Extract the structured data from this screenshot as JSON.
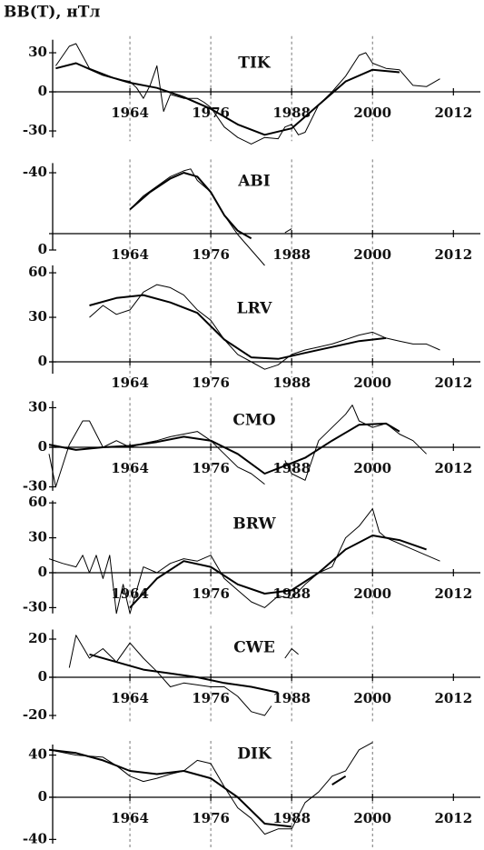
{
  "axis_label": "BB(T), нТл",
  "chart_data": [
    {
      "type": "line",
      "title": "TIK",
      "xlim": [
        1952,
        2016
      ],
      "xticks": [
        1964,
        1976,
        1988,
        2000,
        2012
      ],
      "ylim": [
        -35,
        40
      ],
      "yticks": [
        30,
        0,
        -30
      ],
      "series": [
        {
          "color": "#000000",
          "width": 1,
          "x": [
            1953,
            1955,
            1956,
            1958,
            1960,
            1962,
            1964,
            1965,
            1966,
            1967,
            1968,
            1969,
            1970,
            1972,
            1974,
            1975,
            1976,
            1978,
            1980,
            1982,
            1984,
            1986,
            1987,
            1988,
            1989,
            1990,
            1992,
            1994,
            1996,
            1998,
            1999,
            2000,
            2002,
            2004,
            2006,
            2008,
            2010
          ],
          "values": [
            20,
            35,
            37,
            18,
            14,
            10,
            8,
            3,
            -5,
            5,
            20,
            -15,
            -2,
            -5,
            -5,
            -8,
            -12,
            -27,
            -35,
            -40,
            -35,
            -36,
            -27,
            -25,
            -33,
            -31,
            -10,
            0,
            12,
            28,
            30,
            22,
            18,
            17,
            5,
            4,
            10
          ]
        },
        {
          "color": "#000000",
          "width": 2,
          "x": [
            1953,
            1956,
            1960,
            1964,
            1968,
            1972,
            1976,
            1980,
            1984,
            1988,
            1992,
            1996,
            2000,
            2004
          ],
          "values": [
            18,
            22,
            13,
            7,
            3,
            -4,
            -13,
            -25,
            -33,
            -28,
            -10,
            8,
            17,
            15
          ]
        }
      ]
    },
    {
      "type": "line",
      "title": "ABI",
      "xlim": [
        1952,
        2016
      ],
      "xticks": [
        1964,
        1976,
        1988,
        2000,
        2012
      ],
      "ylim": [
        0,
        -45
      ],
      "yticks": [
        -40,
        0
      ],
      "series": [
        {
          "color": "#000000",
          "width": 1,
          "x": [
            1964,
            1966,
            1968,
            1970,
            1972,
            1973,
            1974,
            1976,
            1978,
            1980,
            1982,
            1984,
            1986,
            1987,
            1988
          ],
          "values": [
            -21,
            -28,
            -33,
            -38,
            -41,
            -42,
            -36,
            -30,
            -18,
            -8,
            0,
            8,
            null,
            -9,
            -11
          ]
        },
        {
          "color": "#000000",
          "width": 2,
          "x": [
            1964,
            1967,
            1970,
            1972,
            1974,
            1976,
            1978,
            1980,
            1982
          ],
          "values": [
            -21,
            -30,
            -37,
            -40,
            -38,
            -30,
            -18,
            -10,
            -6
          ]
        }
      ]
    },
    {
      "type": "line",
      "title": "LRV",
      "xlim": [
        1952,
        2016
      ],
      "xticks": [
        1964,
        1976,
        1988,
        2000,
        2012
      ],
      "ylim": [
        -8,
        65
      ],
      "yticks": [
        60,
        30,
        0
      ],
      "series": [
        {
          "color": "#000000",
          "width": 1,
          "x": [
            1958,
            1960,
            1962,
            1964,
            1966,
            1968,
            1970,
            1972,
            1974,
            1976,
            1978,
            1980,
            1982,
            1984,
            1986,
            1988,
            1990,
            1992,
            1994,
            1996,
            1998,
            2000,
            2002,
            2004,
            2006,
            2008,
            2010
          ],
          "values": [
            30,
            38,
            32,
            35,
            47,
            52,
            50,
            45,
            35,
            28,
            15,
            5,
            0,
            -5,
            -2,
            5,
            8,
            10,
            12,
            15,
            18,
            20,
            16,
            14,
            12,
            12,
            8
          ]
        },
        {
          "color": "#000000",
          "width": 2,
          "x": [
            1958,
            1962,
            1966,
            1970,
            1974,
            1978,
            1982,
            1986,
            1990,
            1994,
            1998,
            2002
          ],
          "values": [
            38,
            43,
            45,
            40,
            33,
            15,
            3,
            2,
            6,
            10,
            14,
            16
          ]
        }
      ]
    },
    {
      "type": "line",
      "title": "CMO",
      "xlim": [
        1952,
        2016
      ],
      "xticks": [
        1964,
        1976,
        1988,
        2000,
        2012
      ],
      "ylim": [
        -33,
        35
      ],
      "yticks": [
        30,
        0,
        -30
      ],
      "series": [
        {
          "color": "#000000",
          "width": 1,
          "x": [
            1952,
            1953,
            1955,
            1957,
            1958,
            1960,
            1962,
            1964,
            1966,
            1968,
            1970,
            1972,
            1974,
            1976,
            1978,
            1980,
            1982,
            1984,
            1986,
            1987,
            1988,
            1990,
            1992,
            1994,
            1996,
            1997,
            1998,
            2000,
            2002,
            2004,
            2006,
            2008
          ],
          "values": [
            -5,
            -30,
            2,
            20,
            20,
            0,
            5,
            0,
            3,
            5,
            8,
            10,
            12,
            5,
            -5,
            -15,
            -20,
            -28,
            null,
            -10,
            -20,
            -25,
            5,
            15,
            25,
            32,
            20,
            15,
            18,
            10,
            5,
            -5
          ]
        },
        {
          "color": "#000000",
          "width": 2,
          "x": [
            1952,
            1956,
            1960,
            1964,
            1968,
            1972,
            1976,
            1980,
            1984,
            1990,
            1994,
            1998,
            2002,
            2004
          ],
          "values": [
            2,
            -2,
            0,
            1,
            4,
            8,
            5,
            -5,
            -20,
            -8,
            5,
            17,
            18,
            12
          ]
        }
      ]
    },
    {
      "type": "line",
      "title": "BRW",
      "xlim": [
        1952,
        2016
      ],
      "xticks": [
        1964,
        1976,
        1988,
        2000,
        2012
      ],
      "ylim": [
        -35,
        62
      ],
      "yticks": [
        60,
        30,
        0,
        -30
      ],
      "series": [
        {
          "color": "#000000",
          "width": 1,
          "x": [
            1952,
            1954,
            1956,
            1957,
            1958,
            1959,
            1960,
            1961,
            1962,
            1963,
            1964,
            1966,
            1968,
            1970,
            1972,
            1974,
            1976,
            1978,
            1980,
            1982,
            1984,
            1986,
            1988,
            1990,
            1992,
            1994,
            1996,
            1998,
            2000,
            2001,
            2002,
            2004,
            2006,
            2008,
            2010
          ],
          "values": [
            12,
            8,
            5,
            15,
            0,
            15,
            -5,
            15,
            -35,
            -10,
            -35,
            5,
            0,
            8,
            12,
            10,
            15,
            -5,
            -15,
            -25,
            -30,
            -20,
            -22,
            -10,
            0,
            5,
            30,
            40,
            55,
            35,
            30,
            25,
            20,
            15,
            10
          ]
        },
        {
          "color": "#000000",
          "width": 2,
          "x": [
            1964,
            1968,
            1972,
            1976,
            1980,
            1984,
            1988,
            1992,
            1996,
            2000,
            2004,
            2008
          ],
          "values": [
            -30,
            -5,
            10,
            5,
            -10,
            -18,
            -15,
            0,
            20,
            32,
            28,
            20
          ]
        }
      ]
    },
    {
      "type": "line",
      "title": "CWE",
      "xlim": [
        1952,
        2016
      ],
      "xticks": [
        1964,
        1976,
        1988,
        2000,
        2012
      ],
      "ylim": [
        -22,
        25
      ],
      "yticks": [
        20,
        0,
        -20
      ],
      "series": [
        {
          "color": "#000000",
          "width": 1,
          "x": [
            1955,
            1956,
            1958,
            1960,
            1962,
            1964,
            1966,
            1968,
            1970,
            1972,
            1974,
            1976,
            1978,
            1980,
            1982,
            1984,
            1985,
            1986,
            1987,
            1988,
            1989
          ],
          "values": [
            5,
            22,
            10,
            15,
            8,
            18,
            10,
            3,
            -5,
            -3,
            -4,
            -5,
            -5,
            -10,
            -18,
            -20,
            -15,
            null,
            10,
            15,
            12
          ]
        },
        {
          "color": "#000000",
          "width": 2,
          "x": [
            1958,
            1962,
            1966,
            1970,
            1974,
            1978,
            1982,
            1986
          ],
          "values": [
            12,
            8,
            4,
            2,
            0,
            -3,
            -5,
            -8
          ]
        }
      ]
    },
    {
      "type": "line",
      "title": "DIK",
      "xlim": [
        1952,
        2016
      ],
      "xticks": [
        1964,
        1976,
        1988,
        2000,
        2012
      ],
      "ylim": [
        -44,
        50
      ],
      "yticks": [
        40,
        0,
        -40
      ],
      "series": [
        {
          "color": "#000000",
          "width": 1,
          "x": [
            1952,
            1956,
            1960,
            1962,
            1964,
            1966,
            1968,
            1970,
            1972,
            1974,
            1976,
            1978,
            1980,
            1982,
            1984,
            1986,
            1988,
            1990,
            1992,
            1994,
            1996,
            1998,
            2000
          ],
          "values": [
            45,
            40,
            38,
            30,
            20,
            15,
            18,
            22,
            25,
            35,
            32,
            10,
            -10,
            -20,
            -35,
            -30,
            -30,
            -5,
            5,
            20,
            25,
            45,
            52
          ]
        },
        {
          "color": "#000000",
          "width": 2,
          "x": [
            1952,
            1956,
            1960,
            1964,
            1968,
            1972,
            1976,
            1980,
            1984,
            1988,
            1990,
            1994,
            1996
          ],
          "values": [
            45,
            42,
            35,
            25,
            22,
            25,
            18,
            0,
            -25,
            -28,
            null,
            12,
            20
          ]
        }
      ]
    }
  ]
}
